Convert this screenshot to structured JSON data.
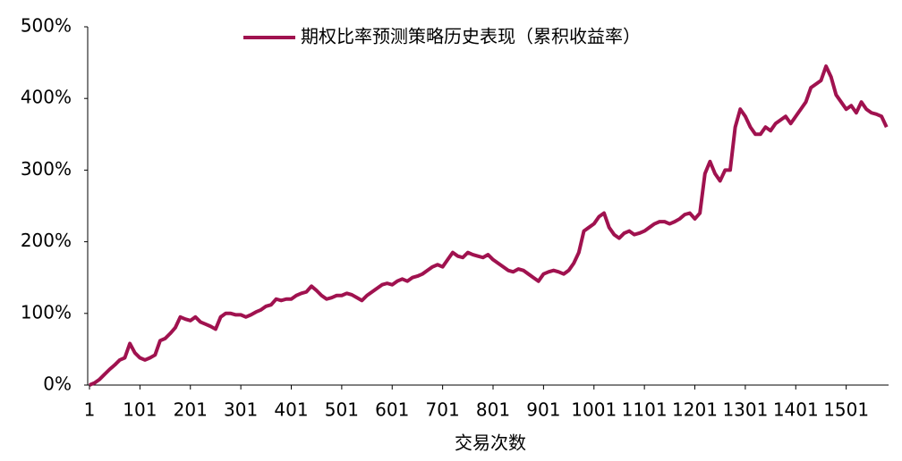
{
  "chart_data": {
    "type": "line",
    "series": [
      {
        "name": "期权比率预测策略历史表现（累积收益率）",
        "color": "#a0124f",
        "values": [
          0,
          3,
          8,
          15,
          22,
          28,
          35,
          38,
          58,
          45,
          38,
          35,
          38,
          42,
          62,
          65,
          72,
          80,
          95,
          92,
          90,
          95,
          88,
          85,
          82,
          78,
          95,
          100,
          100,
          98,
          98,
          95,
          98,
          102,
          105,
          110,
          112,
          120,
          118,
          120,
          120,
          125,
          128,
          130,
          138,
          132,
          125,
          120,
          122,
          125,
          125,
          128,
          126,
          122,
          118,
          125,
          130,
          135,
          140,
          142,
          140,
          145,
          148,
          145,
          150,
          152,
          155,
          160,
          165,
          168,
          165,
          175,
          185,
          180,
          178,
          185,
          182,
          180,
          178,
          182,
          175,
          170,
          165,
          160,
          158,
          162,
          160,
          155,
          150,
          145,
          155,
          158,
          160,
          158,
          155,
          160,
          170,
          185,
          215,
          220,
          225,
          235,
          240,
          220,
          210,
          205,
          212,
          215,
          210,
          212,
          215,
          220,
          225,
          228,
          228,
          225,
          228,
          232,
          238,
          240,
          232,
          240,
          295,
          312,
          295,
          285,
          300,
          300,
          360,
          385,
          375,
          360,
          350,
          350,
          360,
          355,
          365,
          370,
          375,
          365,
          375,
          385,
          395,
          415,
          420,
          425,
          445,
          430,
          405,
          395,
          385,
          390,
          380,
          395,
          385,
          380,
          378,
          375,
          360
        ]
      }
    ],
    "x": [
      1,
      11,
      21,
      31,
      41,
      51,
      61,
      71,
      81,
      91,
      101,
      111,
      121,
      131,
      141,
      151,
      161,
      171,
      181,
      191,
      201,
      211,
      221,
      231,
      241,
      251,
      261,
      271,
      281,
      291,
      301,
      311,
      321,
      331,
      341,
      351,
      361,
      371,
      381,
      391,
      401,
      411,
      421,
      431,
      441,
      451,
      461,
      471,
      481,
      491,
      501,
      511,
      521,
      531,
      541,
      551,
      561,
      571,
      581,
      591,
      601,
      611,
      621,
      631,
      641,
      651,
      661,
      671,
      681,
      691,
      701,
      711,
      721,
      731,
      741,
      751,
      761,
      771,
      781,
      791,
      801,
      811,
      821,
      831,
      841,
      851,
      861,
      871,
      881,
      891,
      901,
      911,
      921,
      931,
      941,
      951,
      961,
      971,
      981,
      991,
      1001,
      1011,
      1021,
      1031,
      1041,
      1051,
      1061,
      1071,
      1081,
      1091,
      1101,
      1111,
      1121,
      1131,
      1141,
      1151,
      1161,
      1171,
      1181,
      1191,
      1201,
      1211,
      1221,
      1231,
      1241,
      1251,
      1261,
      1271,
      1281,
      1291,
      1301,
      1311,
      1321,
      1331,
      1341,
      1351,
      1361,
      1371,
      1381,
      1391,
      1401,
      1411,
      1421,
      1431,
      1441,
      1451,
      1461,
      1471,
      1481,
      1491,
      1501,
      1511,
      1521,
      1531,
      1541,
      1551,
      1561,
      1571,
      1581
    ],
    "xlim": [
      1,
      1585
    ],
    "xticks": [
      1,
      101,
      201,
      301,
      401,
      501,
      601,
      701,
      801,
      901,
      1001,
      1101,
      1201,
      1301,
      1401,
      1501
    ],
    "ylim": [
      0,
      500
    ],
    "yticks": [
      {
        "value": 0,
        "label": "0%"
      },
      {
        "value": 100,
        "label": "100%"
      },
      {
        "value": 200,
        "label": "200%"
      },
      {
        "value": 300,
        "label": "300%"
      },
      {
        "value": 400,
        "label": "400%"
      },
      {
        "value": 500,
        "label": "500%"
      }
    ],
    "xlabel": "交易次数",
    "legend": "top"
  }
}
